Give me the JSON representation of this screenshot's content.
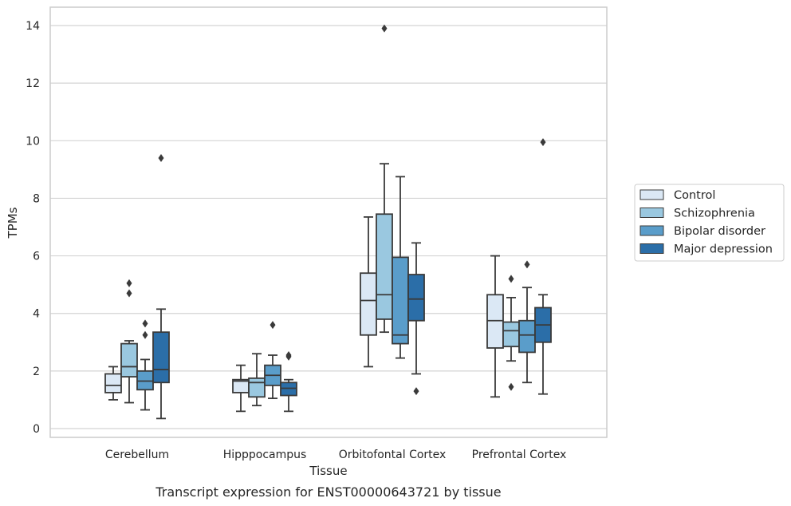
{
  "figure_title": "Transcript expression for ENST00000643721 by tissue",
  "chart_data": {
    "type": "box",
    "title": "Transcript expression for ENST00000643721 by tissue",
    "xlabel": "Tissue",
    "ylabel": "TPMs",
    "ylim": [
      -0.3,
      14.6
    ],
    "yticks": [
      0,
      2,
      4,
      6,
      8,
      10,
      12,
      14
    ],
    "categories": [
      "Cerebellum",
      "Hipppocampus",
      "Orbitofontal Cortex",
      "Prefrontal Cortex"
    ],
    "grid": "horizontal",
    "legend_position": "right",
    "series": [
      {
        "name": "Control",
        "color": "#dbe8f5",
        "boxes": [
          {
            "whislo": 1.0,
            "q1": 1.25,
            "med": 1.5,
            "q3": 1.9,
            "whishi": 2.15,
            "fliers": []
          },
          {
            "whislo": 0.6,
            "q1": 1.25,
            "med": 1.65,
            "q3": 1.7,
            "whishi": 2.2,
            "fliers": []
          },
          {
            "whislo": 2.15,
            "q1": 3.25,
            "med": 4.45,
            "q3": 5.4,
            "whishi": 7.35,
            "fliers": []
          },
          {
            "whislo": 1.1,
            "q1": 2.8,
            "med": 3.75,
            "q3": 4.65,
            "whishi": 6.0,
            "fliers": []
          }
        ]
      },
      {
        "name": "Schizophrenia",
        "color": "#9ac8e0",
        "boxes": [
          {
            "whislo": 0.9,
            "q1": 1.8,
            "med": 2.15,
            "q3": 2.95,
            "whishi": 3.05,
            "fliers": [
              4.7,
              5.05
            ]
          },
          {
            "whislo": 0.8,
            "q1": 1.1,
            "med": 1.6,
            "q3": 1.75,
            "whishi": 2.6,
            "fliers": []
          },
          {
            "whislo": 3.35,
            "q1": 3.8,
            "med": 4.65,
            "q3": 7.45,
            "whishi": 9.2,
            "fliers": [
              13.9
            ]
          },
          {
            "whislo": 2.35,
            "q1": 2.85,
            "med": 3.4,
            "q3": 3.7,
            "whishi": 4.55,
            "fliers": [
              5.2,
              1.45
            ]
          }
        ]
      },
      {
        "name": "Bipolar disorder",
        "color": "#5a9dca",
        "boxes": [
          {
            "whislo": 0.65,
            "q1": 1.35,
            "med": 1.65,
            "q3": 2.0,
            "whishi": 2.4,
            "fliers": [
              3.25,
              3.65
            ]
          },
          {
            "whislo": 1.05,
            "q1": 1.5,
            "med": 1.85,
            "q3": 2.2,
            "whishi": 2.55,
            "fliers": [
              3.6
            ]
          },
          {
            "whislo": 2.45,
            "q1": 2.95,
            "med": 3.25,
            "q3": 5.95,
            "whishi": 8.75,
            "fliers": []
          },
          {
            "whislo": 1.6,
            "q1": 2.65,
            "med": 3.25,
            "q3": 3.75,
            "whishi": 4.9,
            "fliers": [
              5.7
            ]
          }
        ]
      },
      {
        "name": "Major depression",
        "color": "#2b6ea8",
        "boxes": [
          {
            "whislo": 0.35,
            "q1": 1.6,
            "med": 2.05,
            "q3": 3.35,
            "whishi": 4.15,
            "fliers": [
              9.4
            ]
          },
          {
            "whislo": 0.6,
            "q1": 1.15,
            "med": 1.4,
            "q3": 1.6,
            "whishi": 1.7,
            "fliers": [
              2.5,
              2.55
            ]
          },
          {
            "whislo": 1.9,
            "q1": 3.75,
            "med": 4.5,
            "q3": 5.35,
            "whishi": 6.45,
            "fliers": [
              1.3
            ]
          },
          {
            "whislo": 1.2,
            "q1": 3.0,
            "med": 3.6,
            "q3": 4.2,
            "whishi": 4.65,
            "fliers": [
              9.95
            ]
          }
        ]
      }
    ]
  }
}
